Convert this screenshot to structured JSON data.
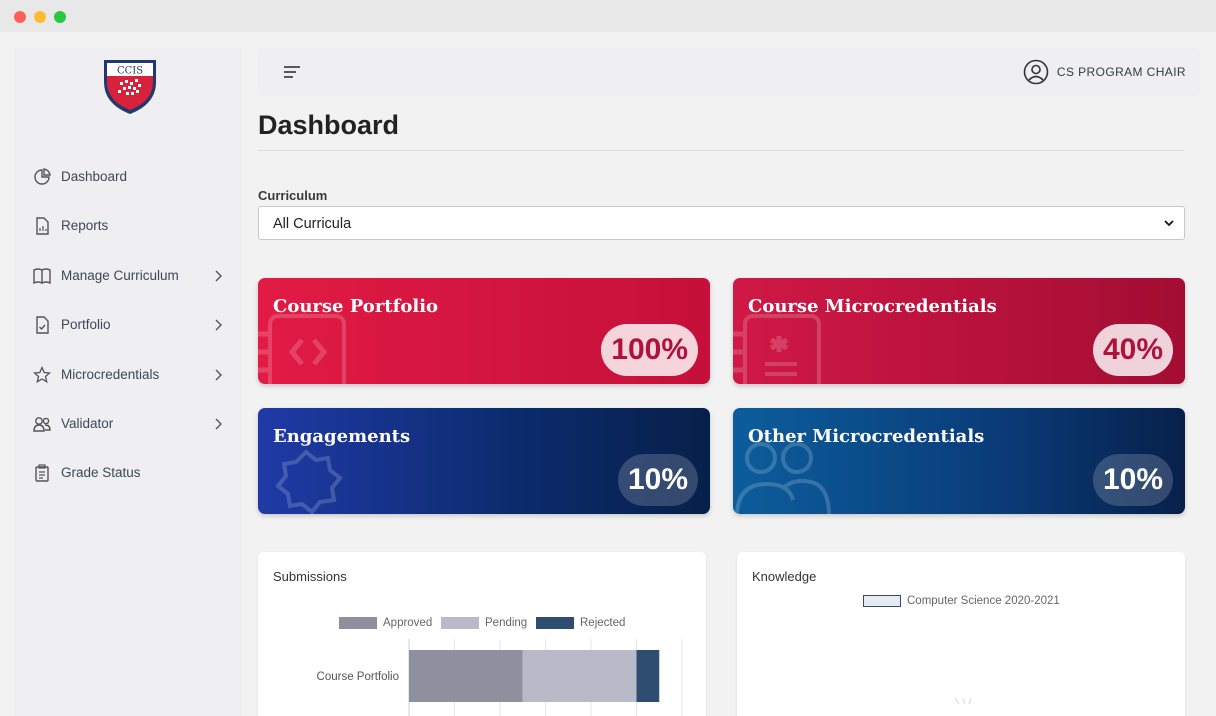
{
  "sidebar": {
    "logo_text": "CCIS",
    "items": [
      {
        "label": "Dashboard",
        "icon": "pie-chart-icon",
        "has_chevron": false
      },
      {
        "label": "Reports",
        "icon": "report-file-icon",
        "has_chevron": false
      },
      {
        "label": "Manage Curriculum",
        "icon": "book-open-icon",
        "has_chevron": true
      },
      {
        "label": "Portfolio",
        "icon": "file-check-icon",
        "has_chevron": true
      },
      {
        "label": "Microcredentials",
        "icon": "star-icon",
        "has_chevron": true
      },
      {
        "label": "Validator",
        "icon": "users-icon",
        "has_chevron": true
      },
      {
        "label": "Grade Status",
        "icon": "clipboard-list-icon",
        "has_chevron": false
      }
    ]
  },
  "header": {
    "user_name": "CS PROGRAM CHAIR"
  },
  "main": {
    "title": "Dashboard",
    "curriculum_label": "Curriculum",
    "curriculum_selected": "All Curricula"
  },
  "cards": [
    {
      "title": "Course Portfolio",
      "percent": "100%",
      "color_from": "#e11b45",
      "color_to": "#c4103a"
    },
    {
      "title": "Course Microcredentials",
      "percent": "40%",
      "color_from": "#d01846",
      "color_to": "#a30d33"
    },
    {
      "title": "Engagements",
      "percent": "10%",
      "color_from": "#1f3aa6",
      "color_to": "#07204a"
    },
    {
      "title": "Other Microcredentials",
      "percent": "10%",
      "color_from": "#0c5d9c",
      "color_to": "#07204a"
    }
  ],
  "panels": {
    "submissions_title": "Submissions",
    "knowledge_title": "Knowledge"
  },
  "chart_data": [
    {
      "type": "bar",
      "orientation": "horizontal-stacked",
      "categories": [
        "Course Portfolio"
      ],
      "series": [
        {
          "name": "Approved",
          "values": [
            5
          ],
          "color": "#8f909d"
        },
        {
          "name": "Pending",
          "values": [
            5
          ],
          "color": "#b9bac7"
        },
        {
          "name": "Rejected",
          "values": [
            1
          ],
          "color": "#2f4d70"
        }
      ],
      "xlim": [
        0,
        12
      ],
      "legend": "top",
      "grid": true
    },
    {
      "type": "radar",
      "series": [
        {
          "name": "Computer Science 2020-2021",
          "color": "#e8eaf3",
          "border": "#2f4d70"
        }
      ],
      "legend": "top"
    }
  ]
}
